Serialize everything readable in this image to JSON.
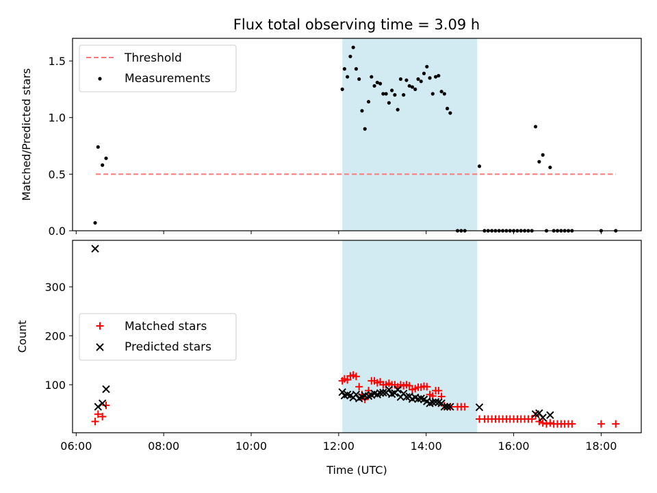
{
  "chart_data": [
    {
      "type": "scatter",
      "title": "Flux total observing time = 3.09 h",
      "xlabel": "",
      "ylabel": "Matched/Predicted stars",
      "xlim": [
        "05:55",
        "18:55"
      ],
      "ylim": [
        0,
        1.7
      ],
      "yticks": [
        0.0,
        0.5,
        1.0,
        1.5
      ],
      "shaded_interval": [
        "12:05",
        "15:10"
      ],
      "shade_color": "#add8e6",
      "legend_position": "upper-left",
      "series": [
        {
          "name": "Threshold",
          "style": "dashed-line",
          "color": "#ff7777",
          "points": [
            [
              "06:27",
              0.5
            ],
            [
              "18:20",
              0.5
            ]
          ]
        },
        {
          "name": "Measurements",
          "style": "dot",
          "color": "#000000",
          "points": [
            [
              "06:26",
              0.07
            ],
            [
              "06:30",
              0.74
            ],
            [
              "06:36",
              0.58
            ],
            [
              "06:41",
              0.64
            ],
            [
              "12:05",
              1.25
            ],
            [
              "12:08",
              1.43
            ],
            [
              "12:12",
              1.36
            ],
            [
              "12:16",
              1.54
            ],
            [
              "12:20",
              1.62
            ],
            [
              "12:24",
              1.43
            ],
            [
              "12:28",
              1.34
            ],
            [
              "12:32",
              1.06
            ],
            [
              "12:36",
              0.9
            ],
            [
              "12:41",
              1.14
            ],
            [
              "12:45",
              1.36
            ],
            [
              "12:49",
              1.28
            ],
            [
              "12:53",
              1.31
            ],
            [
              "12:57",
              1.3
            ],
            [
              "13:01",
              1.21
            ],
            [
              "13:05",
              1.21
            ],
            [
              "13:09",
              1.13
            ],
            [
              "13:13",
              1.24
            ],
            [
              "13:17",
              1.2
            ],
            [
              "13:21",
              1.07
            ],
            [
              "13:25",
              1.34
            ],
            [
              "13:29",
              1.2
            ],
            [
              "13:33",
              1.33
            ],
            [
              "13:37",
              1.28
            ],
            [
              "13:41",
              1.27
            ],
            [
              "13:45",
              1.25
            ],
            [
              "13:49",
              1.34
            ],
            [
              "13:53",
              1.32
            ],
            [
              "13:57",
              1.39
            ],
            [
              "14:01",
              1.45
            ],
            [
              "14:05",
              1.35
            ],
            [
              "14:09",
              1.21
            ],
            [
              "14:13",
              1.36
            ],
            [
              "14:17",
              1.37
            ],
            [
              "14:21",
              1.23
            ],
            [
              "14:25",
              1.21
            ],
            [
              "14:29",
              1.08
            ],
            [
              "14:33",
              1.04
            ],
            [
              "14:43",
              0.0
            ],
            [
              "14:48",
              0.0
            ],
            [
              "14:53",
              0.0
            ],
            [
              "15:13",
              0.57
            ],
            [
              "15:20",
              0.0
            ],
            [
              "15:25",
              0.0
            ],
            [
              "15:30",
              0.0
            ],
            [
              "15:35",
              0.0
            ],
            [
              "15:40",
              0.0
            ],
            [
              "15:45",
              0.0
            ],
            [
              "15:50",
              0.0
            ],
            [
              "15:55",
              0.0
            ],
            [
              "16:00",
              0.0
            ],
            [
              "16:05",
              0.0
            ],
            [
              "16:10",
              0.0
            ],
            [
              "16:15",
              0.0
            ],
            [
              "16:20",
              0.0
            ],
            [
              "16:25",
              0.0
            ],
            [
              "16:30",
              0.92
            ],
            [
              "16:35",
              0.61
            ],
            [
              "16:40",
              0.67
            ],
            [
              "16:50",
              0.56
            ],
            [
              "16:45",
              0.0
            ],
            [
              "16:55",
              0.0
            ],
            [
              "17:00",
              0.0
            ],
            [
              "17:05",
              0.0
            ],
            [
              "17:10",
              0.0
            ],
            [
              "17:15",
              0.0
            ],
            [
              "17:20",
              0.0
            ],
            [
              "18:00",
              0.0
            ],
            [
              "18:20",
              0.0
            ]
          ]
        }
      ]
    },
    {
      "type": "scatter",
      "title": "",
      "xlabel": "Time (UTC)",
      "ylabel": "Count",
      "xlim": [
        "05:55",
        "18:55"
      ],
      "ylim": [
        2,
        395
      ],
      "yticks": [
        100,
        200,
        300
      ],
      "xticks": [
        "06:00",
        "08:00",
        "10:00",
        "12:00",
        "14:00",
        "16:00",
        "18:00"
      ],
      "shaded_interval": [
        "12:05",
        "15:10"
      ],
      "shade_color": "#add8e6",
      "legend_position": "center-left",
      "series": [
        {
          "name": "Matched stars",
          "style": "plus",
          "color": "#ff0000",
          "points": [
            [
              "06:26",
              25
            ],
            [
              "06:30",
              40
            ],
            [
              "06:36",
              35
            ],
            [
              "06:41",
              58
            ],
            [
              "12:05",
              108
            ],
            [
              "12:08",
              112
            ],
            [
              "12:12",
              110
            ],
            [
              "12:16",
              118
            ],
            [
              "12:20",
              120
            ],
            [
              "12:24",
              117
            ],
            [
              "12:28",
              96
            ],
            [
              "12:32",
              80
            ],
            [
              "12:36",
              70
            ],
            [
              "12:41",
              88
            ],
            [
              "12:45",
              108
            ],
            [
              "12:49",
              108
            ],
            [
              "12:53",
              104
            ],
            [
              "12:57",
              106
            ],
            [
              "13:01",
              100
            ],
            [
              "13:05",
              100
            ],
            [
              "13:09",
              103
            ],
            [
              "13:13",
              100
            ],
            [
              "13:17",
              100
            ],
            [
              "13:21",
              96
            ],
            [
              "13:25",
              100
            ],
            [
              "13:29",
              98
            ],
            [
              "13:33",
              100
            ],
            [
              "13:37",
              98
            ],
            [
              "13:41",
              90
            ],
            [
              "13:45",
              92
            ],
            [
              "13:49",
              95
            ],
            [
              "13:53",
              95
            ],
            [
              "13:57",
              97
            ],
            [
              "14:01",
              96
            ],
            [
              "14:05",
              80
            ],
            [
              "14:09",
              77
            ],
            [
              "14:13",
              88
            ],
            [
              "14:17",
              88
            ],
            [
              "14:21",
              76
            ],
            [
              "14:25",
              57
            ],
            [
              "14:29",
              55
            ],
            [
              "14:33",
              55
            ],
            [
              "14:43",
              55
            ],
            [
              "14:48",
              55
            ],
            [
              "14:53",
              55
            ],
            [
              "15:13",
              30
            ],
            [
              "15:20",
              30
            ],
            [
              "15:25",
              30
            ],
            [
              "15:30",
              30
            ],
            [
              "15:35",
              30
            ],
            [
              "15:40",
              30
            ],
            [
              "15:45",
              30
            ],
            [
              "15:50",
              30
            ],
            [
              "15:55",
              30
            ],
            [
              "16:00",
              30
            ],
            [
              "16:05",
              30
            ],
            [
              "16:10",
              30
            ],
            [
              "16:15",
              30
            ],
            [
              "16:20",
              30
            ],
            [
              "16:25",
              30
            ],
            [
              "16:30",
              37
            ],
            [
              "16:35",
              25
            ],
            [
              "16:40",
              22
            ],
            [
              "16:45",
              20
            ],
            [
              "16:50",
              22
            ],
            [
              "16:55",
              20
            ],
            [
              "17:00",
              20
            ],
            [
              "17:05",
              20
            ],
            [
              "17:10",
              20
            ],
            [
              "17:15",
              20
            ],
            [
              "17:20",
              20
            ],
            [
              "18:00",
              20
            ],
            [
              "18:20",
              20
            ]
          ]
        },
        {
          "name": "Predicted stars",
          "style": "x",
          "color": "#000000",
          "points": [
            [
              "06:26",
              378
            ],
            [
              "06:30",
              55
            ],
            [
              "06:36",
              62
            ],
            [
              "06:41",
              91
            ],
            [
              "12:05",
              85
            ],
            [
              "12:08",
              78
            ],
            [
              "12:12",
              80
            ],
            [
              "12:16",
              78
            ],
            [
              "12:20",
              74
            ],
            [
              "12:24",
              80
            ],
            [
              "12:28",
              72
            ],
            [
              "12:32",
              75
            ],
            [
              "12:36",
              78
            ],
            [
              "12:41",
              77
            ],
            [
              "12:45",
              79
            ],
            [
              "12:49",
              82
            ],
            [
              "12:53",
              80
            ],
            [
              "12:57",
              83
            ],
            [
              "13:01",
              84
            ],
            [
              "13:05",
              84
            ],
            [
              "13:09",
              90
            ],
            [
              "13:13",
              81
            ],
            [
              "13:17",
              83
            ],
            [
              "13:21",
              90
            ],
            [
              "13:25",
              75
            ],
            [
              "13:29",
              82
            ],
            [
              "13:33",
              75
            ],
            [
              "13:37",
              76
            ],
            [
              "13:41",
              71
            ],
            [
              "13:45",
              74
            ],
            [
              "13:49",
              71
            ],
            [
              "13:53",
              72
            ],
            [
              "13:57",
              70
            ],
            [
              "14:01",
              66
            ],
            [
              "14:05",
              62
            ],
            [
              "14:09",
              64
            ],
            [
              "14:13",
              65
            ],
            [
              "14:17",
              64
            ],
            [
              "14:21",
              62
            ],
            [
              "14:25",
              55
            ],
            [
              "14:29",
              55
            ],
            [
              "14:33",
              55
            ],
            [
              "15:13",
              54
            ],
            [
              "16:30",
              40
            ],
            [
              "16:35",
              42
            ],
            [
              "16:40",
              33
            ],
            [
              "16:50",
              38
            ]
          ]
        }
      ]
    }
  ]
}
